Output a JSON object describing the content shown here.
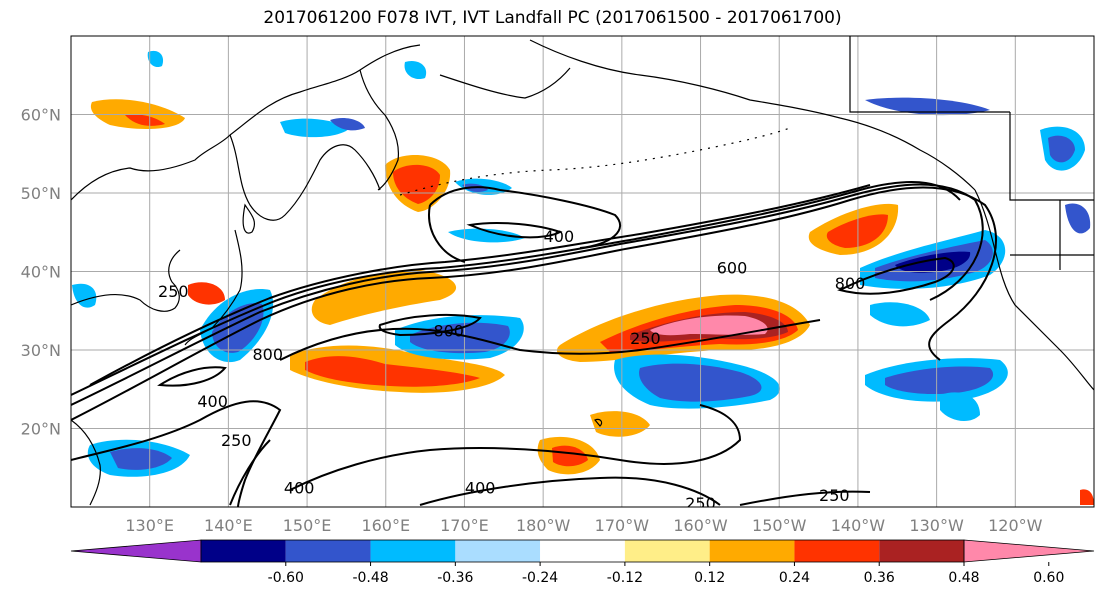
{
  "title": "2017061200 F078 IVT, IVT Landfall PC (2017061500 - 2017061700)",
  "map": {
    "lon_range": [
      120,
      250
    ],
    "lat_range": [
      10,
      70
    ],
    "lat_ticks": [
      {
        "value": 20,
        "label": "20°N"
      },
      {
        "value": 30,
        "label": "30°N"
      },
      {
        "value": 40,
        "label": "40°N"
      },
      {
        "value": 50,
        "label": "50°N"
      },
      {
        "value": 60,
        "label": "60°N"
      }
    ],
    "lon_ticks": [
      {
        "value": 130,
        "label": "130°E"
      },
      {
        "value": 140,
        "label": "140°E"
      },
      {
        "value": 150,
        "label": "150°E"
      },
      {
        "value": 160,
        "label": "160°E"
      },
      {
        "value": 170,
        "label": "170°E"
      },
      {
        "value": 180,
        "label": "180°W"
      },
      {
        "value": 190,
        "label": "170°W"
      },
      {
        "value": 200,
        "label": "160°W"
      },
      {
        "value": 210,
        "label": "150°W"
      },
      {
        "value": 220,
        "label": "140°W"
      },
      {
        "value": 230,
        "label": "130°W"
      },
      {
        "value": 240,
        "label": "120°W"
      }
    ],
    "grid": true,
    "contour_labels": [
      {
        "text": "250",
        "lon": 133,
        "lat": 37
      },
      {
        "text": "800",
        "lon": 145,
        "lat": 29
      },
      {
        "text": "400",
        "lon": 138,
        "lat": 23
      },
      {
        "text": "250",
        "lon": 141,
        "lat": 18
      },
      {
        "text": "400",
        "lon": 149,
        "lat": 12
      },
      {
        "text": "400",
        "lon": 172,
        "lat": 12
      },
      {
        "text": "800",
        "lon": 168,
        "lat": 32
      },
      {
        "text": "400",
        "lon": 182,
        "lat": 44
      },
      {
        "text": "600",
        "lon": 204,
        "lat": 40
      },
      {
        "text": "250",
        "lon": 193,
        "lat": 31
      },
      {
        "text": "800",
        "lon": 219,
        "lat": 38
      },
      {
        "text": "250",
        "lon": 200,
        "lat": 10
      },
      {
        "text": "250",
        "lon": 217,
        "lat": 11
      }
    ]
  },
  "colorbar": {
    "colors": [
      "#9933cc",
      "#000088",
      "#3355cc",
      "#00bbff",
      "#aaddff",
      "#ffffff",
      "#ffee88",
      "#ffaa00",
      "#ff3300",
      "#aa2222",
      "#ff88aa"
    ],
    "ticks": [
      "-0.60",
      "-0.48",
      "-0.36",
      "-0.24",
      "-0.12",
      "0.12",
      "0.24",
      "0.36",
      "0.48",
      "0.60"
    ]
  }
}
